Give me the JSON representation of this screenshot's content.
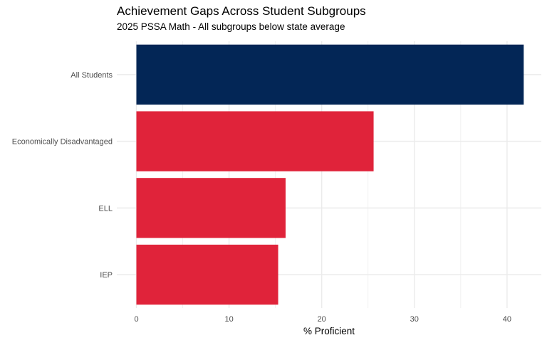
{
  "chart_data": {
    "type": "bar",
    "orientation": "horizontal",
    "title": "Achievement Gaps Across Student Subgroups",
    "subtitle": "2025 PSSA Math - All subgroups below state average",
    "xlabel": "% Proficient",
    "ylabel": "",
    "categories": [
      "All Students",
      "Economically Disadvantaged",
      "ELL",
      "IEP"
    ],
    "values": [
      41.8,
      25.6,
      16.1,
      15.3
    ],
    "bar_colors": [
      "#032656",
      "#e0233a",
      "#e0233a",
      "#e0233a"
    ],
    "xlim": [
      0,
      42
    ],
    "xticks": [
      0,
      10,
      20,
      30,
      40
    ],
    "grid": true,
    "legend": "none"
  },
  "colors": {
    "primary": "#032656",
    "accent": "#e0233a",
    "grid": "#ebebeb",
    "text": "#000000",
    "tick_text": "#4d4d4d"
  }
}
